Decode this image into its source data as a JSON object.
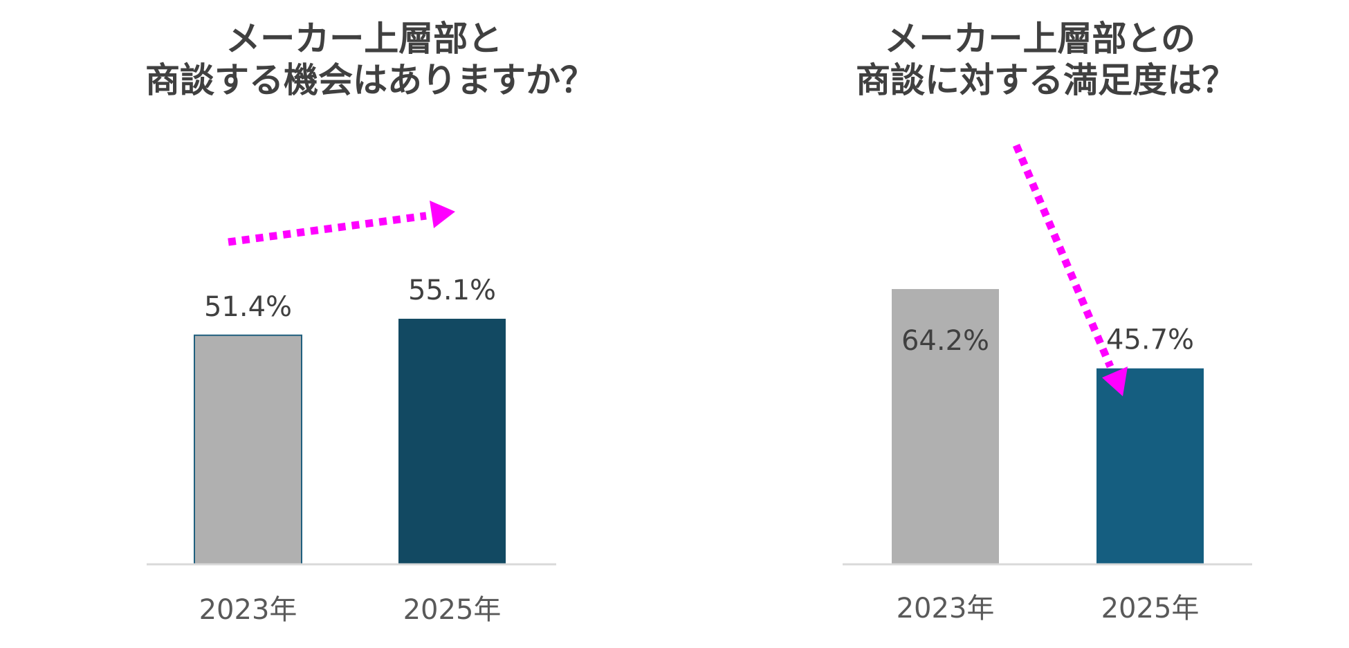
{
  "chart_data": [
    {
      "type": "bar",
      "title": "メーカー上層部と\n商談する機会はありますか？",
      "categories": [
        "2023年",
        "2025年"
      ],
      "values": [
        51.4,
        55.1
      ],
      "data_labels": [
        "51.4%",
        "55.1%"
      ],
      "unit": "%",
      "ylim": [
        0,
        90
      ],
      "grid": false,
      "legend": "none",
      "colors": [
        "#b0b0b0",
        "#124962"
      ],
      "annotation": {
        "type": "trend-arrow",
        "direction": "up",
        "style": "dotted",
        "color": "#ff00ff"
      }
    },
    {
      "type": "bar",
      "title": "メーカー上層部との\n商談に対する満足度は？",
      "categories": [
        "2023年",
        "2025年"
      ],
      "values": [
        64.2,
        45.7
      ],
      "data_labels": [
        "64.2%",
        "45.7%"
      ],
      "unit": "%",
      "ylim": [
        0,
        100
      ],
      "grid": false,
      "legend": "none",
      "colors": [
        "#b0b0b0",
        "#155e80"
      ],
      "annotation": {
        "type": "trend-arrow",
        "direction": "down",
        "style": "dotted",
        "color": "#ff00ff"
      }
    }
  ]
}
